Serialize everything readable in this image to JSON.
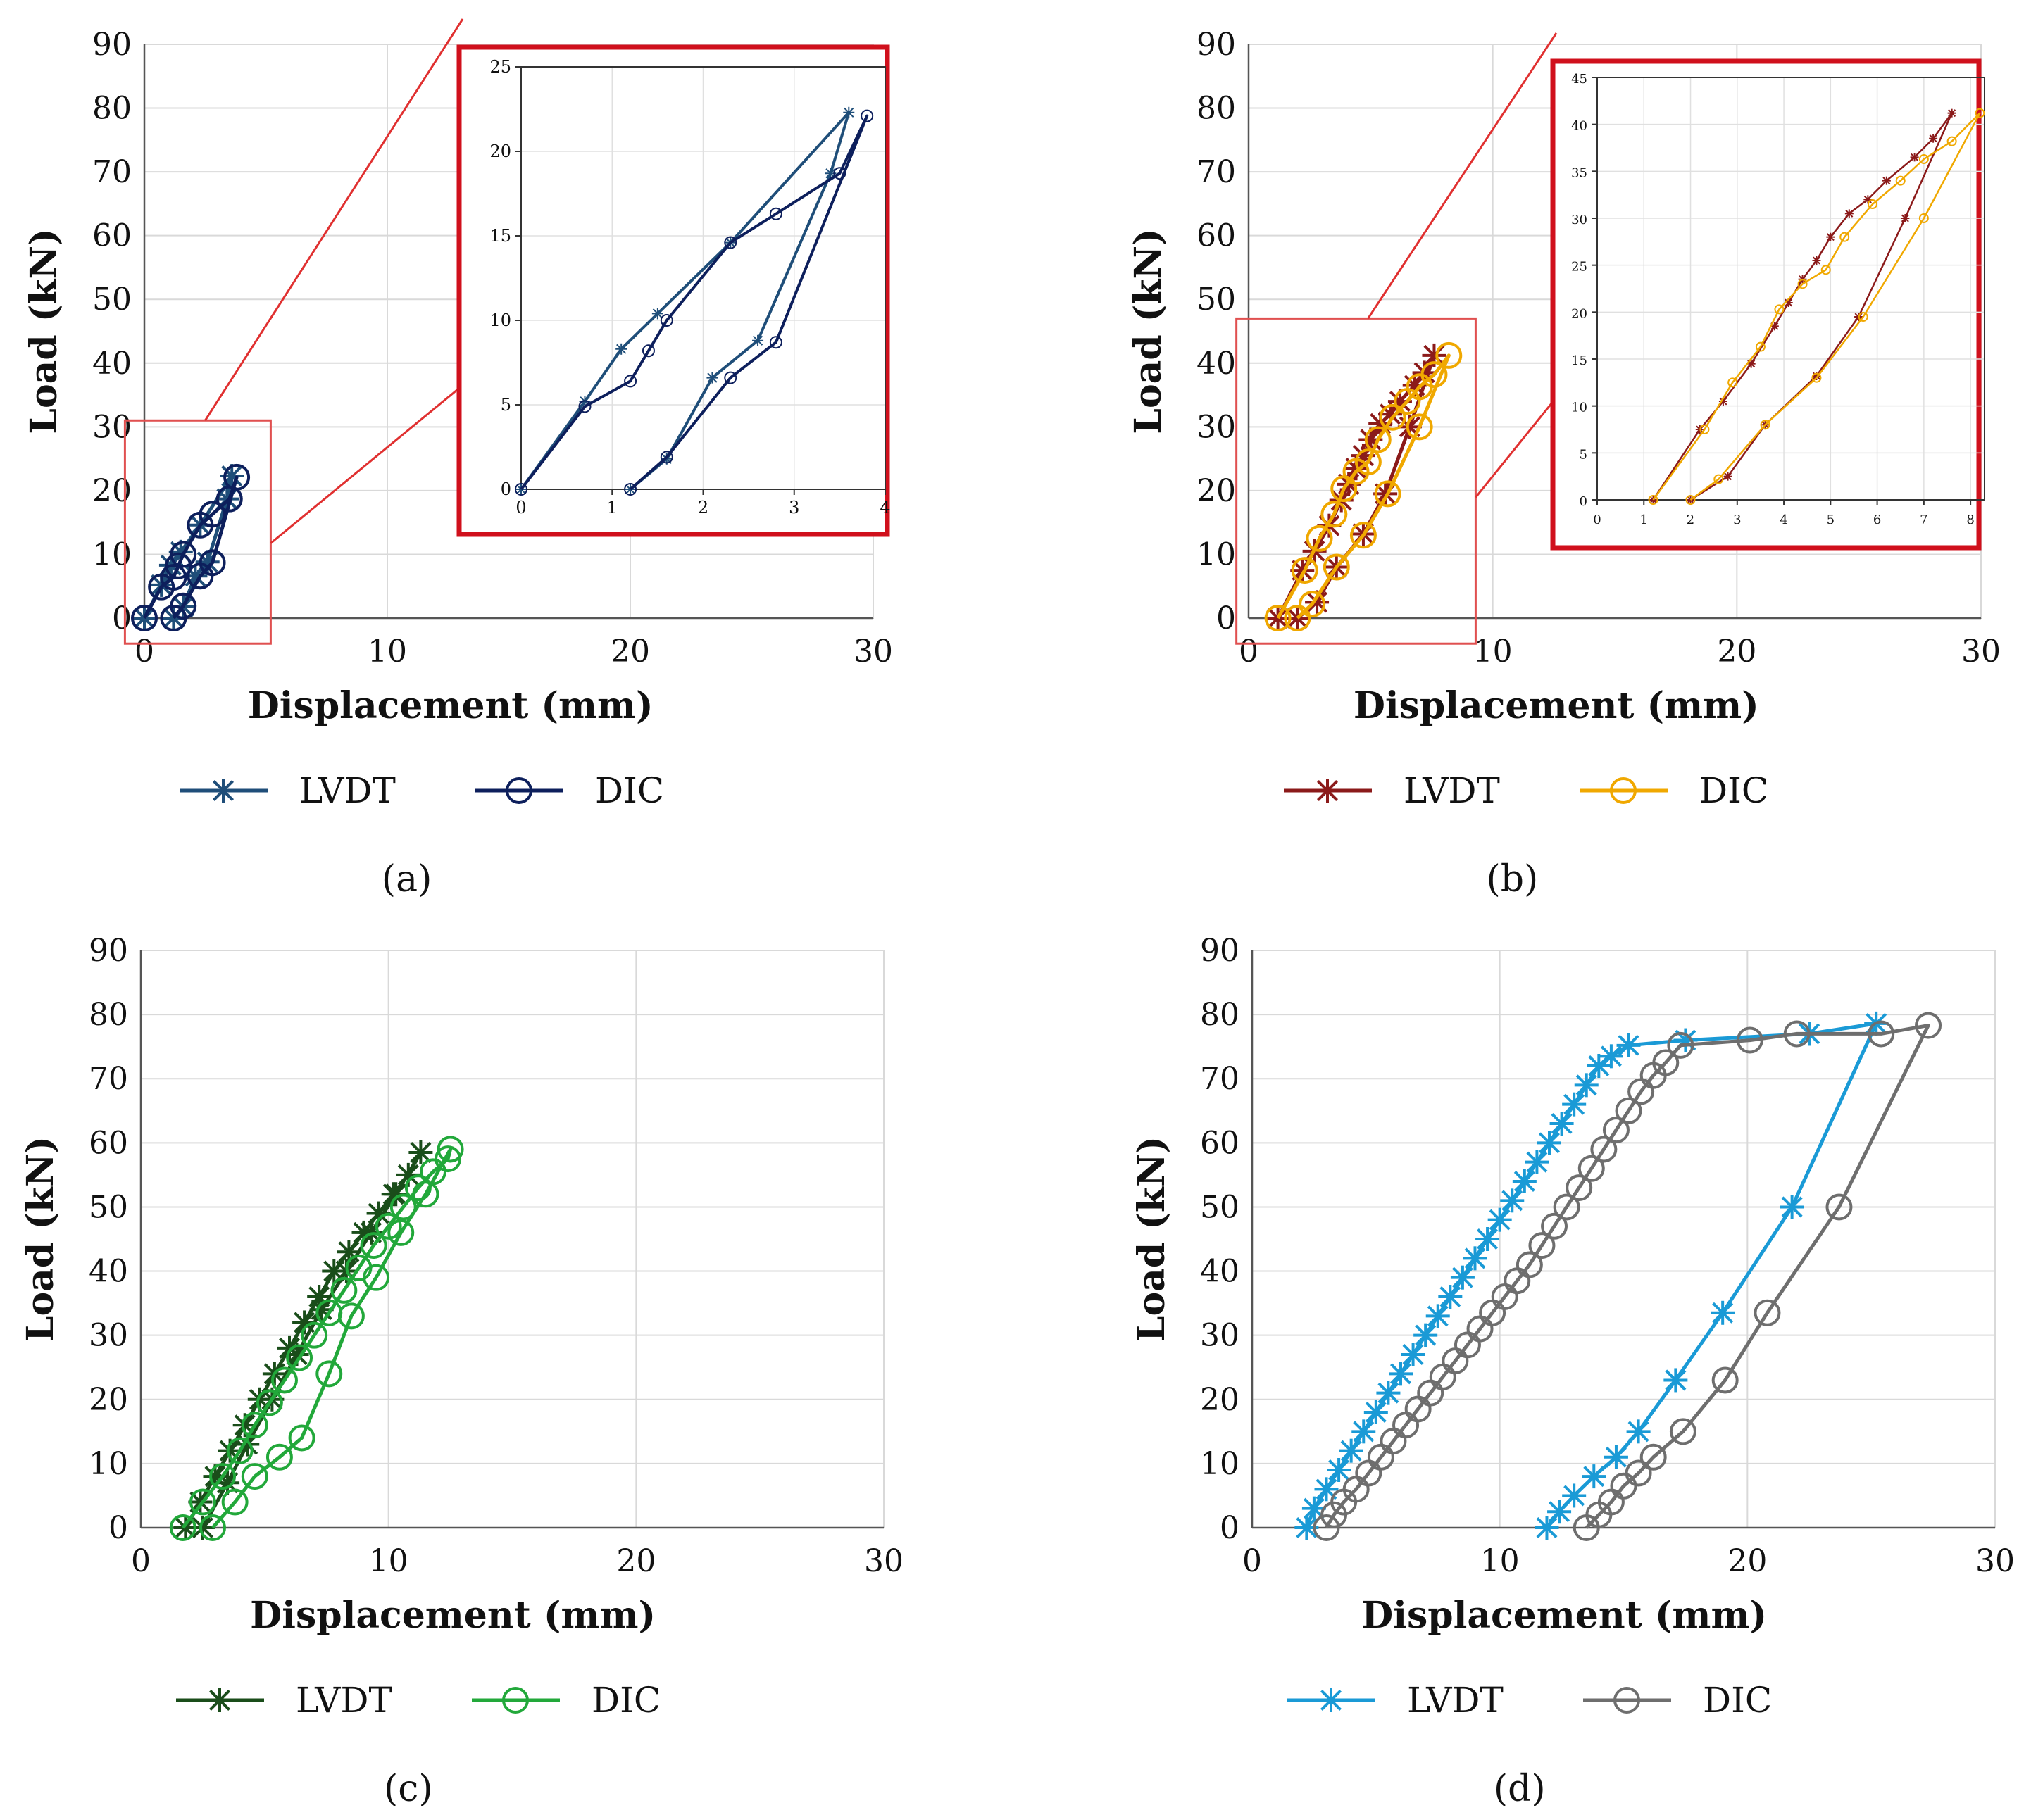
{
  "figure": {
    "panel_labels": [
      "(a)",
      "(b)",
      "(c)",
      "(d)"
    ]
  },
  "chart_data": [
    {
      "id": "a",
      "type": "line",
      "panel_label": "(a)",
      "xlabel": "Displacement (mm)",
      "ylabel": "Load (kN)",
      "xlim": [
        0,
        30
      ],
      "ylim": [
        0,
        90
      ],
      "xticks": [
        0,
        10,
        20,
        30
      ],
      "yticks": [
        0,
        10,
        20,
        30,
        40,
        50,
        60,
        70,
        80,
        90
      ],
      "grid": true,
      "legend_position": "bottom",
      "series": [
        {
          "name": "LVDT",
          "color": "#1f4e79",
          "marker": "asterisk",
          "x": [
            0,
            0.7,
            1.1,
            1.5,
            2.3,
            3.6,
            3.4,
            2.6,
            2.1,
            1.6,
            1.2
          ],
          "y": [
            0,
            5.2,
            8.3,
            10.4,
            14.6,
            22.3,
            18.7,
            8.8,
            6.6,
            1.8,
            0
          ]
        },
        {
          "name": "DIC",
          "color": "#0d1f5c",
          "marker": "circle",
          "x": [
            0,
            0.7,
            1.2,
            1.4,
            1.6,
            2.3,
            2.8,
            3.5,
            3.8,
            2.8,
            2.3,
            1.6,
            1.2
          ],
          "y": [
            0,
            4.9,
            6.4,
            8.2,
            10,
            14.6,
            16.3,
            18.7,
            22.1,
            8.7,
            6.6,
            1.9,
            0
          ]
        }
      ],
      "inset": {
        "xlim": [
          0,
          4
        ],
        "ylim": [
          0,
          25
        ],
        "xticks": [
          0,
          1,
          2,
          3,
          4
        ],
        "yticks": [
          0,
          5,
          10,
          15,
          20,
          25
        ]
      },
      "zoom_box": {
        "xlim": [
          -0.8,
          5.2
        ],
        "ylim": [
          -4,
          31
        ]
      }
    },
    {
      "id": "b",
      "type": "line",
      "panel_label": "(b)",
      "xlabel": "Displacement  (mm)",
      "ylabel": "Load (kN)",
      "xlim": [
        0,
        30
      ],
      "ylim": [
        0,
        90
      ],
      "xticks": [
        0,
        10,
        20,
        30
      ],
      "yticks": [
        0,
        10,
        20,
        30,
        40,
        50,
        60,
        70,
        80,
        90
      ],
      "grid": true,
      "legend_position": "bottom",
      "series": [
        {
          "name": "LVDT",
          "color": "#8b1a1a",
          "marker": "asterisk",
          "x": [
            1.2,
            2.2,
            2.7,
            3.3,
            3.8,
            4.1,
            4.4,
            4.7,
            5.0,
            5.4,
            5.8,
            6.2,
            6.8,
            7.2,
            7.6,
            6.6,
            5.6,
            4.7,
            3.6,
            2.8,
            2.0
          ],
          "y": [
            0,
            7.5,
            10.5,
            14.5,
            18.5,
            21,
            23.5,
            25.5,
            28,
            30.5,
            32,
            34,
            36.5,
            38.5,
            41.2,
            30,
            19.5,
            13.2,
            8,
            2.5,
            0
          ]
        },
        {
          "name": "DIC",
          "color": "#f0a800",
          "marker": "circle",
          "x": [
            1.2,
            2.3,
            2.9,
            3.5,
            3.9,
            4.4,
            4.9,
            5.3,
            5.9,
            6.5,
            7.0,
            7.6,
            8.2,
            7.0,
            5.7,
            4.7,
            3.6,
            2.6,
            2.0
          ],
          "y": [
            0,
            7.5,
            12.5,
            16.3,
            20.3,
            23,
            24.5,
            28,
            31.5,
            34,
            36.3,
            38.2,
            41.2,
            30,
            19.5,
            13,
            8,
            2.2,
            0
          ]
        }
      ],
      "inset": {
        "xlim": [
          0,
          8.3
        ],
        "ylim": [
          0,
          45
        ],
        "xticks": [
          0,
          1,
          2,
          3,
          4,
          5,
          6,
          7,
          8
        ],
        "yticks": [
          0,
          5,
          10,
          15,
          20,
          25,
          30,
          35,
          40,
          45
        ]
      },
      "zoom_box": {
        "xlim": [
          -0.5,
          9.3
        ],
        "ylim": [
          -4,
          47
        ]
      }
    },
    {
      "id": "c",
      "type": "line",
      "panel_label": "(c)",
      "xlabel": "Displacement (mm)",
      "ylabel": "Load (kN)",
      "xlim": [
        0,
        30
      ],
      "ylim": [
        0,
        90
      ],
      "xticks": [
        0,
        10,
        20,
        30
      ],
      "yticks": [
        0,
        10,
        20,
        30,
        40,
        50,
        60,
        70,
        80,
        90
      ],
      "grid": true,
      "legend_position": "bottom",
      "series": [
        {
          "name": "LVDT",
          "color": "#1a4d1a",
          "marker": "asterisk",
          "x": [
            1.8,
            2.4,
            3.0,
            3.6,
            4.2,
            4.8,
            5.4,
            6.0,
            6.6,
            7.2,
            7.8,
            8.4,
            9.0,
            9.6,
            10.2,
            10.8,
            11.3,
            10.3,
            9.3,
            8.3,
            7.3,
            6.3,
            5.3,
            4.3,
            3.5,
            2.5
          ],
          "y": [
            0,
            4,
            8,
            12,
            16,
            20,
            24,
            28,
            32,
            36,
            40,
            43,
            46,
            49,
            52,
            55,
            58.5,
            52,
            46,
            40,
            34,
            27,
            20,
            13,
            7,
            0
          ]
        },
        {
          "name": "DIC",
          "color": "#22a83a",
          "marker": "circle",
          "x": [
            1.7,
            2.5,
            3.3,
            4.0,
            4.6,
            5.2,
            5.8,
            6.4,
            7.0,
            7.6,
            8.2,
            8.8,
            9.4,
            10.0,
            10.6,
            11.2,
            11.8,
            12.4,
            12.5,
            11.5,
            10.5,
            9.5,
            8.5,
            7.6,
            6.5,
            5.6,
            4.6,
            3.8,
            2.9
          ],
          "y": [
            0,
            4,
            8,
            12,
            16,
            19.5,
            23,
            26.5,
            30,
            33.5,
            37,
            40.5,
            44,
            47,
            50,
            53,
            55.5,
            57.5,
            59,
            52,
            46,
            39,
            33,
            24,
            14,
            11,
            8,
            4,
            0
          ]
        }
      ]
    },
    {
      "id": "d",
      "type": "line",
      "panel_label": "(d)",
      "xlabel": "Displacement (mm)",
      "ylabel": "Load (kN)",
      "xlim": [
        0,
        30
      ],
      "ylim": [
        0,
        90
      ],
      "xticks": [
        0,
        10,
        20,
        30
      ],
      "yticks": [
        0,
        10,
        20,
        30,
        40,
        50,
        60,
        70,
        80,
        90
      ],
      "grid": true,
      "legend_position": "bottom",
      "series": [
        {
          "name": "LVDT",
          "color": "#1a9ad6",
          "marker": "asterisk",
          "x": [
            2.2,
            2.5,
            3.0,
            3.5,
            4.0,
            4.5,
            5.0,
            5.5,
            6.0,
            6.5,
            7.0,
            7.5,
            8.0,
            8.5,
            9.0,
            9.5,
            10.0,
            10.5,
            11.0,
            11.5,
            12.0,
            12.5,
            13.0,
            13.5,
            14.0,
            14.5,
            15.2,
            17.5,
            22.5,
            25.2,
            21.8,
            19.0,
            17.1,
            15.6,
            14.7,
            13.8,
            13.0,
            12.4,
            11.9
          ],
          "y": [
            0,
            3,
            6,
            9,
            12,
            15,
            18,
            21,
            24,
            27,
            30,
            33,
            36,
            39,
            42,
            45,
            48,
            51,
            54,
            57,
            60,
            63,
            66,
            69,
            72,
            73.5,
            75.2,
            76,
            77,
            78.6,
            50,
            33.5,
            23,
            15,
            11,
            8,
            5,
            2.5,
            0
          ]
        },
        {
          "name": "DIC",
          "color": "#6e6e6e",
          "marker": "circle",
          "x": [
            3.0,
            3.3,
            3.7,
            4.2,
            4.7,
            5.2,
            5.7,
            6.2,
            6.7,
            7.2,
            7.7,
            8.2,
            8.7,
            9.2,
            9.7,
            10.2,
            10.7,
            11.2,
            11.7,
            12.2,
            12.7,
            13.2,
            13.7,
            14.2,
            14.7,
            15.2,
            15.7,
            16.2,
            16.7,
            17.3,
            20.1,
            22.0,
            25.4,
            27.3,
            23.7,
            20.8,
            19.1,
            17.4,
            16.2,
            15.6,
            15.0,
            14.5,
            14.0,
            13.5
          ],
          "y": [
            0,
            2,
            4,
            6,
            8.5,
            11,
            13.5,
            16,
            18.5,
            21,
            23.5,
            26,
            28.5,
            31,
            33.5,
            36,
            38.5,
            41,
            44,
            47,
            50,
            53,
            56,
            59,
            62,
            65,
            68,
            70.5,
            72.5,
            75.2,
            76,
            77,
            77,
            78.3,
            50,
            33.5,
            23,
            15,
            11,
            8.5,
            6.5,
            4,
            2,
            0
          ]
        }
      ]
    }
  ]
}
